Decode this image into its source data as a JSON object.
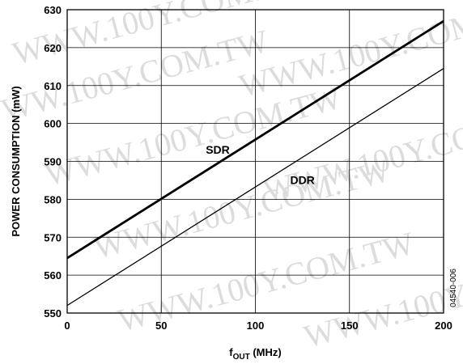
{
  "chart_data": {
    "type": "line",
    "title": "",
    "xlabel": "f",
    "xlabel_sub": "OUT",
    "xlabel_unit": " (MHz)",
    "ylabel": "POWER CONSUMPTION (mW)",
    "xlim": [
      0,
      200
    ],
    "ylim": [
      550,
      630
    ],
    "x_ticks": [
      0,
      50,
      100,
      150,
      200
    ],
    "y_ticks": [
      550,
      560,
      570,
      580,
      590,
      600,
      610,
      620,
      630
    ],
    "x_tick_labels": [
      "0",
      "50",
      "100",
      "150",
      "200"
    ],
    "y_tick_labels": [
      "550",
      "560",
      "570",
      "580",
      "590",
      "600",
      "610",
      "620",
      "630"
    ],
    "grid": true,
    "legend": "inline labels",
    "series": [
      {
        "name": "SDR",
        "x": [
          0,
          200
        ],
        "values": [
          564.5,
          627
        ],
        "stroke": "thick",
        "label_at": [
          80,
          592
        ]
      },
      {
        "name": "DDR",
        "x": [
          0,
          200
        ],
        "values": [
          552,
          614.5
        ],
        "stroke": "thin",
        "label_at": [
          125,
          584
        ]
      }
    ],
    "figure_id": "04540-006",
    "watermark": "WWW.100Y.COM.TW",
    "colors": {
      "lines": "#000000",
      "grid": "#000000",
      "watermark": "#dcdcdc"
    }
  }
}
